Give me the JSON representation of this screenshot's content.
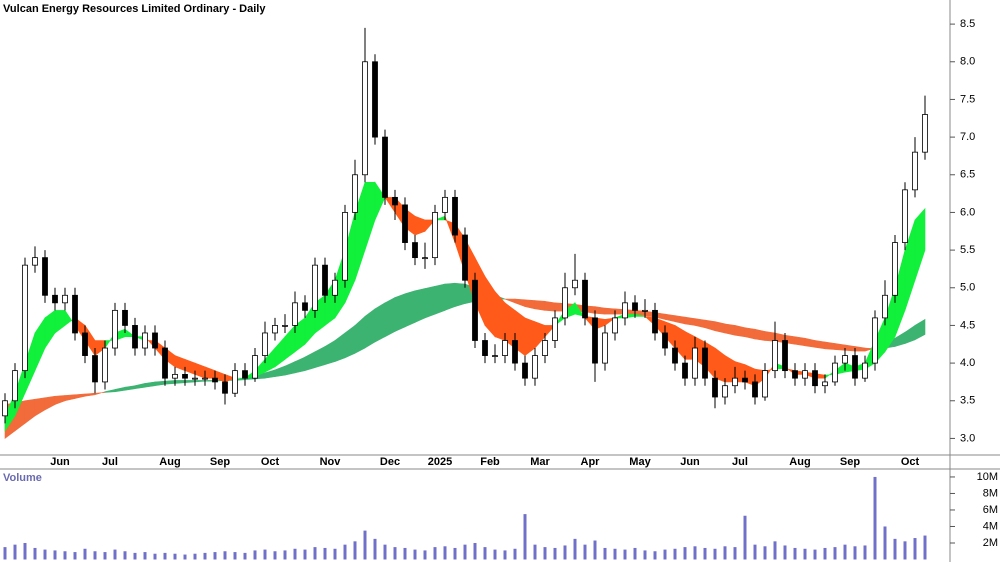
{
  "chart_data": [
    {
      "type": "candlestick",
      "title": "Vulcan Energy Resources Limited Ordinary - Daily",
      "categories": [
        null,
        null,
        null,
        null,
        null,
        "Jun",
        null,
        null,
        null,
        null,
        "Jul",
        null,
        null,
        null,
        null,
        null,
        "Aug",
        null,
        null,
        null,
        null,
        "Sep",
        null,
        null,
        null,
        null,
        "Oct",
        null,
        null,
        null,
        null,
        null,
        "Nov",
        null,
        null,
        null,
        null,
        null,
        "Dec",
        null,
        null,
        null,
        null,
        "2025",
        null,
        null,
        null,
        null,
        "Feb",
        null,
        null,
        null,
        null,
        "Mar",
        null,
        null,
        null,
        null,
        "Apr",
        null,
        null,
        null,
        null,
        "May",
        null,
        null,
        null,
        null,
        "Jun",
        null,
        null,
        null,
        null,
        "Jul",
        null,
        null,
        null,
        null,
        null,
        "Aug",
        null,
        null,
        null,
        null,
        "Sep",
        null,
        null,
        null,
        null,
        null,
        "Oct",
        null,
        null
      ],
      "open": [
        3.3,
        3.5,
        3.9,
        5.3,
        5.4,
        4.9,
        4.8,
        4.9,
        4.4,
        4.1,
        3.75,
        4.2,
        4.7,
        4.5,
        4.2,
        4.4,
        4.2,
        3.8,
        3.85,
        3.8,
        3.8,
        3.8,
        3.75,
        3.6,
        3.9,
        3.8,
        4.1,
        4.4,
        4.5,
        4.5,
        4.8,
        4.7,
        5.3,
        4.9,
        5.1,
        6.0,
        6.5,
        8.0,
        7.0,
        6.2,
        6.1,
        5.6,
        5.4,
        5.4,
        6.0,
        6.2,
        5.7,
        5.1,
        4.3,
        4.1,
        4.1,
        4.3,
        4.0,
        3.8,
        4.1,
        4.3,
        4.6,
        5.0,
        5.1,
        4.6,
        4.0,
        4.4,
        4.6,
        4.8,
        4.7,
        4.7,
        4.4,
        4.2,
        4.0,
        3.8,
        4.2,
        3.8,
        3.55,
        3.7,
        3.8,
        3.75,
        3.55,
        3.9,
        4.3,
        3.9,
        3.8,
        3.9,
        3.7,
        3.75,
        4.0,
        4.1,
        3.8,
        4.0,
        4.6,
        4.9,
        5.6,
        6.3,
        6.8
      ],
      "high": [
        3.6,
        4.0,
        5.4,
        5.55,
        5.5,
        5.0,
        5.0,
        5.0,
        4.5,
        4.2,
        4.3,
        4.8,
        4.8,
        4.6,
        4.5,
        4.5,
        4.3,
        3.95,
        3.95,
        3.9,
        3.9,
        3.9,
        3.85,
        4.0,
        4.0,
        4.2,
        4.55,
        4.6,
        4.65,
        4.95,
        4.9,
        5.4,
        5.4,
        5.2,
        6.1,
        6.7,
        8.45,
        8.1,
        7.1,
        6.3,
        6.2,
        5.7,
        5.6,
        6.1,
        6.3,
        6.3,
        5.8,
        5.2,
        4.4,
        4.25,
        4.4,
        4.4,
        4.1,
        4.2,
        4.4,
        4.7,
        5.2,
        5.45,
        5.2,
        4.7,
        4.5,
        4.7,
        4.95,
        4.9,
        4.85,
        4.8,
        4.5,
        4.3,
        4.1,
        4.35,
        4.3,
        3.9,
        3.8,
        3.95,
        3.9,
        3.85,
        4.0,
        4.55,
        4.4,
        4.0,
        4.0,
        4.0,
        3.85,
        4.1,
        4.2,
        4.2,
        4.1,
        4.7,
        5.1,
        5.7,
        6.4,
        7.0,
        7.55
      ],
      "low": [
        3.2,
        3.4,
        3.8,
        5.2,
        4.8,
        4.7,
        4.7,
        4.3,
        4.0,
        3.6,
        3.65,
        4.1,
        4.4,
        4.1,
        4.1,
        4.1,
        3.7,
        3.7,
        3.7,
        3.7,
        3.7,
        3.65,
        3.45,
        3.55,
        3.7,
        3.75,
        4.0,
        4.3,
        4.4,
        4.4,
        4.6,
        4.6,
        4.8,
        4.8,
        5.0,
        5.9,
        6.4,
        6.9,
        6.1,
        5.9,
        5.5,
        5.3,
        5.25,
        5.3,
        5.9,
        5.6,
        5.0,
        4.2,
        4.0,
        4.0,
        4.0,
        3.9,
        3.7,
        3.7,
        4.0,
        4.2,
        4.5,
        4.9,
        4.5,
        3.75,
        3.9,
        4.3,
        4.5,
        4.6,
        4.6,
        4.3,
        4.1,
        3.9,
        3.7,
        3.7,
        3.7,
        3.4,
        3.45,
        3.6,
        3.65,
        3.45,
        3.5,
        3.8,
        3.8,
        3.7,
        3.7,
        3.6,
        3.6,
        3.7,
        3.9,
        3.7,
        3.75,
        3.9,
        4.5,
        4.8,
        5.5,
        6.2,
        6.7
      ],
      "close": [
        3.5,
        3.9,
        5.3,
        5.4,
        4.9,
        4.8,
        4.9,
        4.4,
        4.1,
        3.75,
        4.2,
        4.7,
        4.5,
        4.2,
        4.4,
        4.2,
        3.8,
        3.85,
        3.8,
        3.8,
        3.8,
        3.75,
        3.6,
        3.9,
        3.8,
        4.1,
        4.4,
        4.5,
        4.5,
        4.8,
        4.7,
        5.3,
        4.9,
        5.1,
        6.0,
        6.5,
        8.0,
        7.0,
        6.2,
        6.1,
        5.6,
        5.4,
        5.4,
        6.0,
        6.2,
        5.7,
        5.1,
        4.3,
        4.1,
        4.1,
        4.3,
        4.0,
        3.8,
        4.1,
        4.3,
        4.6,
        5.0,
        5.1,
        4.6,
        4.0,
        4.4,
        4.6,
        4.8,
        4.7,
        4.7,
        4.4,
        4.2,
        4.0,
        3.8,
        4.2,
        3.8,
        3.55,
        3.7,
        3.8,
        3.75,
        3.55,
        3.9,
        4.3,
        3.9,
        3.8,
        3.9,
        3.7,
        3.75,
        4.0,
        4.1,
        3.8,
        4.0,
        4.6,
        4.9,
        5.6,
        6.3,
        6.8,
        7.3
      ],
      "bands": [
        {
          "up_color": "#3cb371",
          "down_color": "#f26b3a",
          "fast": [
            3.0,
            3.1,
            3.2,
            3.3,
            3.38,
            3.45,
            3.5,
            3.53,
            3.56,
            3.58,
            3.62,
            3.65,
            3.68,
            3.7,
            3.73,
            3.75,
            3.76,
            3.77,
            3.77,
            3.77,
            3.77,
            3.77,
            3.77,
            3.78,
            3.8,
            3.83,
            3.87,
            3.91,
            3.96,
            4.02,
            4.08,
            4.15,
            4.22,
            4.3,
            4.4,
            4.5,
            4.62,
            4.72,
            4.8,
            4.87,
            4.92,
            4.96,
            4.99,
            5.02,
            5.05,
            5.06,
            5.05,
            5.0,
            4.95,
            4.9,
            4.85,
            4.8,
            4.75,
            4.72,
            4.7,
            4.69,
            4.69,
            4.69,
            4.68,
            4.66,
            4.65,
            4.65,
            4.65,
            4.64,
            4.63,
            4.61,
            4.58,
            4.55,
            4.52,
            4.5,
            4.47,
            4.43,
            4.4,
            4.37,
            4.35,
            4.32,
            4.3,
            4.29,
            4.27,
            4.25,
            4.23,
            4.21,
            4.19,
            4.18,
            4.17,
            4.16,
            4.16,
            4.2,
            4.26,
            4.33,
            4.41,
            4.5,
            4.58
          ],
          "slow": [
            3.45,
            3.47,
            3.5,
            3.52,
            3.54,
            3.56,
            3.57,
            3.58,
            3.59,
            3.6,
            3.61,
            3.62,
            3.64,
            3.66,
            3.68,
            3.7,
            3.72,
            3.73,
            3.74,
            3.75,
            3.76,
            3.76,
            3.77,
            3.77,
            3.78,
            3.79,
            3.8,
            3.82,
            3.84,
            3.87,
            3.9,
            3.94,
            3.98,
            4.02,
            4.07,
            4.13,
            4.2,
            4.28,
            4.35,
            4.42,
            4.48,
            4.54,
            4.6,
            4.65,
            4.7,
            4.75,
            4.79,
            4.82,
            4.84,
            4.85,
            4.85,
            4.85,
            4.84,
            4.83,
            4.82,
            4.8,
            4.79,
            4.78,
            4.76,
            4.75,
            4.73,
            4.72,
            4.71,
            4.7,
            4.69,
            4.67,
            4.65,
            4.63,
            4.61,
            4.59,
            4.57,
            4.55,
            4.52,
            4.5,
            4.47,
            4.45,
            4.42,
            4.4,
            4.37,
            4.35,
            4.33,
            4.3,
            4.28,
            4.26,
            4.24,
            4.22,
            4.2,
            4.19,
            4.2,
            4.22,
            4.26,
            4.31,
            4.38
          ]
        },
        {
          "up_color": "#11f03a",
          "down_color": "#ff5a1a",
          "fast": [
            3.3,
            3.6,
            4.0,
            4.4,
            4.6,
            4.7,
            4.7,
            4.5,
            4.3,
            4.1,
            4.2,
            4.4,
            4.45,
            4.35,
            4.35,
            4.2,
            4.05,
            3.95,
            3.9,
            3.85,
            3.8,
            3.8,
            3.75,
            3.8,
            3.8,
            3.9,
            4.05,
            4.2,
            4.35,
            4.5,
            4.6,
            4.8,
            4.9,
            5.1,
            5.5,
            6.0,
            6.4,
            6.4,
            6.2,
            6.0,
            5.8,
            5.7,
            5.75,
            5.9,
            5.95,
            5.6,
            5.2,
            4.8,
            4.5,
            4.35,
            4.3,
            4.2,
            4.1,
            4.2,
            4.35,
            4.5,
            4.7,
            4.8,
            4.6,
            4.45,
            4.5,
            4.6,
            4.65,
            4.65,
            4.62,
            4.5,
            4.35,
            4.2,
            4.05,
            4.05,
            3.95,
            3.8,
            3.75,
            3.75,
            3.75,
            3.7,
            3.8,
            4.0,
            3.95,
            3.85,
            3.85,
            3.8,
            3.8,
            3.9,
            4.0,
            3.95,
            4.0,
            4.3,
            4.6,
            5.0,
            5.5,
            5.9,
            6.05
          ],
          "slow": [
            3.1,
            3.3,
            3.6,
            3.9,
            4.2,
            4.4,
            4.5,
            4.6,
            4.5,
            4.3,
            4.3,
            4.3,
            4.35,
            4.35,
            4.3,
            4.3,
            4.2,
            4.1,
            4.05,
            4.0,
            3.95,
            3.9,
            3.85,
            3.8,
            3.8,
            3.82,
            3.88,
            3.95,
            4.05,
            4.15,
            4.25,
            4.4,
            4.5,
            4.6,
            4.8,
            5.1,
            5.5,
            5.9,
            6.2,
            6.2,
            6.05,
            5.95,
            5.9,
            5.9,
            5.9,
            5.85,
            5.65,
            5.4,
            5.15,
            4.95,
            4.8,
            4.7,
            4.6,
            4.55,
            4.5,
            4.5,
            4.6,
            4.65,
            4.62,
            4.6,
            4.58,
            4.6,
            4.6,
            4.62,
            4.62,
            4.6,
            4.55,
            4.5,
            4.42,
            4.35,
            4.28,
            4.2,
            4.1,
            4.02,
            3.98,
            3.92,
            3.9,
            3.92,
            3.93,
            3.9,
            3.88,
            3.86,
            3.84,
            3.85,
            3.88,
            3.9,
            3.92,
            4.0,
            4.15,
            4.35,
            4.7,
            5.1,
            5.5
          ]
        }
      ],
      "ylim": [
        2.78,
        8.82
      ],
      "yticks": [
        {
          "value": 3,
          "label": "3.0"
        },
        3.5,
        {
          "value": 4,
          "label": "4.0"
        },
        4.5,
        {
          "value": 5,
          "label": "5.0"
        },
        5.5,
        {
          "value": 6,
          "label": "6.0"
        },
        6.5,
        {
          "value": 7,
          "label": "7.0"
        },
        7.5,
        {
          "value": 8,
          "label": "8.0"
        },
        8.5
      ]
    },
    {
      "type": "bar",
      "title": "Volume",
      "color": "#7070c8",
      "values": [
        1500000,
        1800000,
        2000000,
        1400000,
        1200000,
        1100000,
        1000000,
        900000,
        1300000,
        1000000,
        900000,
        1200000,
        1000000,
        800000,
        900000,
        700000,
        800000,
        700000,
        600000,
        700000,
        800000,
        900000,
        1000000,
        900000,
        800000,
        1100000,
        1200000,
        1000000,
        1100000,
        1300000,
        1200000,
        1500000,
        1400000,
        1300000,
        1800000,
        2200000,
        3500000,
        2500000,
        1800000,
        1500000,
        1400000,
        1200000,
        1100000,
        1500000,
        1600000,
        1400000,
        1800000,
        2000000,
        1500000,
        1200000,
        1100000,
        1300000,
        5500000,
        1800000,
        1500000,
        1400000,
        1700000,
        2500000,
        1800000,
        2300000,
        1400000,
        1300000,
        1200000,
        1400000,
        1100000,
        1000000,
        1200000,
        1300000,
        1500000,
        1600000,
        1400000,
        1300000,
        1600000,
        1500000,
        5300000,
        1800000,
        1600000,
        2200000,
        1700000,
        1400000,
        1300000,
        1200000,
        1400000,
        1500000,
        1800000,
        1600000,
        1700000,
        10000000,
        4000000,
        2500000,
        2200000,
        2600000,
        2900000
      ],
      "ylim": [
        0,
        10600000
      ],
      "yticks": [
        {
          "value": 2000000,
          "label": "2M"
        },
        {
          "value": 4000000,
          "label": "4M"
        },
        {
          "value": 6000000,
          "label": "6M"
        },
        {
          "value": 8000000,
          "label": "8M"
        },
        {
          "value": 10000000,
          "label": "10M"
        }
      ]
    }
  ]
}
